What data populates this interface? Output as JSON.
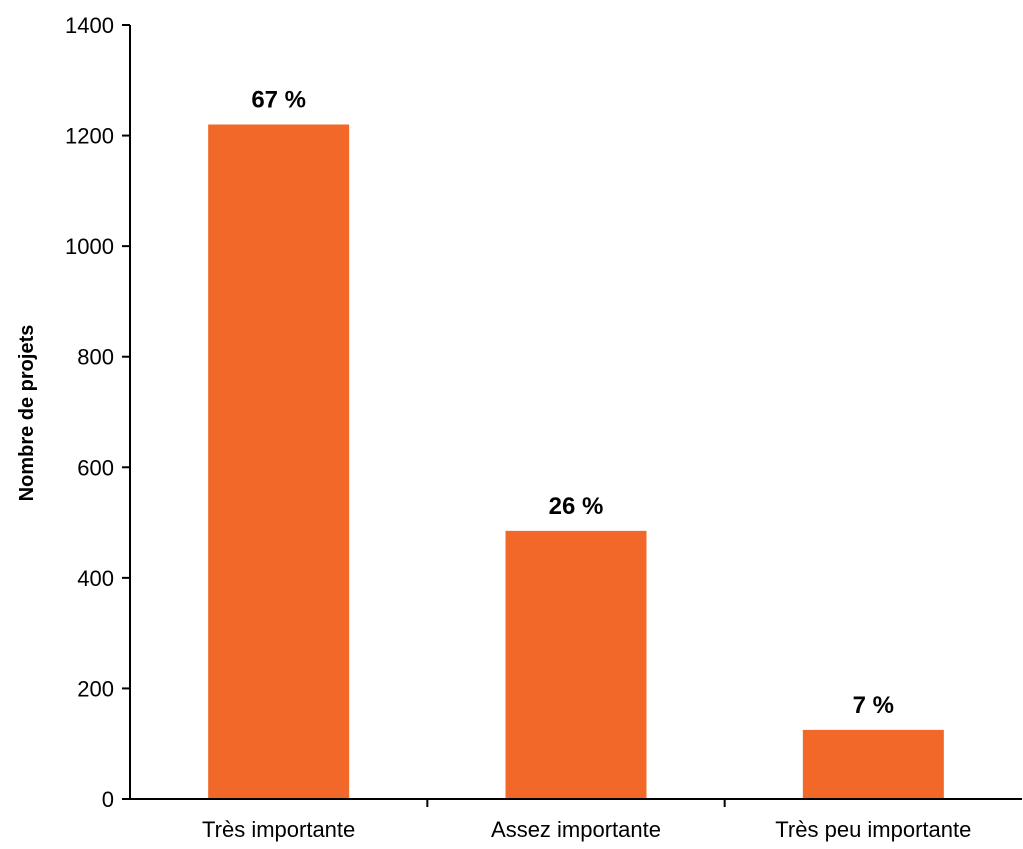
{
  "chart_data": {
    "type": "bar",
    "title": "",
    "xlabel": "",
    "ylabel": "Nombre de projets",
    "ylim": [
      0,
      1400
    ],
    "yticks": [
      0,
      200,
      400,
      600,
      800,
      1000,
      1200,
      1400
    ],
    "categories": [
      "Très importante",
      "Assez importante",
      "Très peu importante"
    ],
    "values": [
      1220,
      485,
      125
    ],
    "data_labels": [
      "67 %",
      "26 %",
      "7 %"
    ],
    "grid": false,
    "legend": "none",
    "bar_color": "#F26828"
  }
}
